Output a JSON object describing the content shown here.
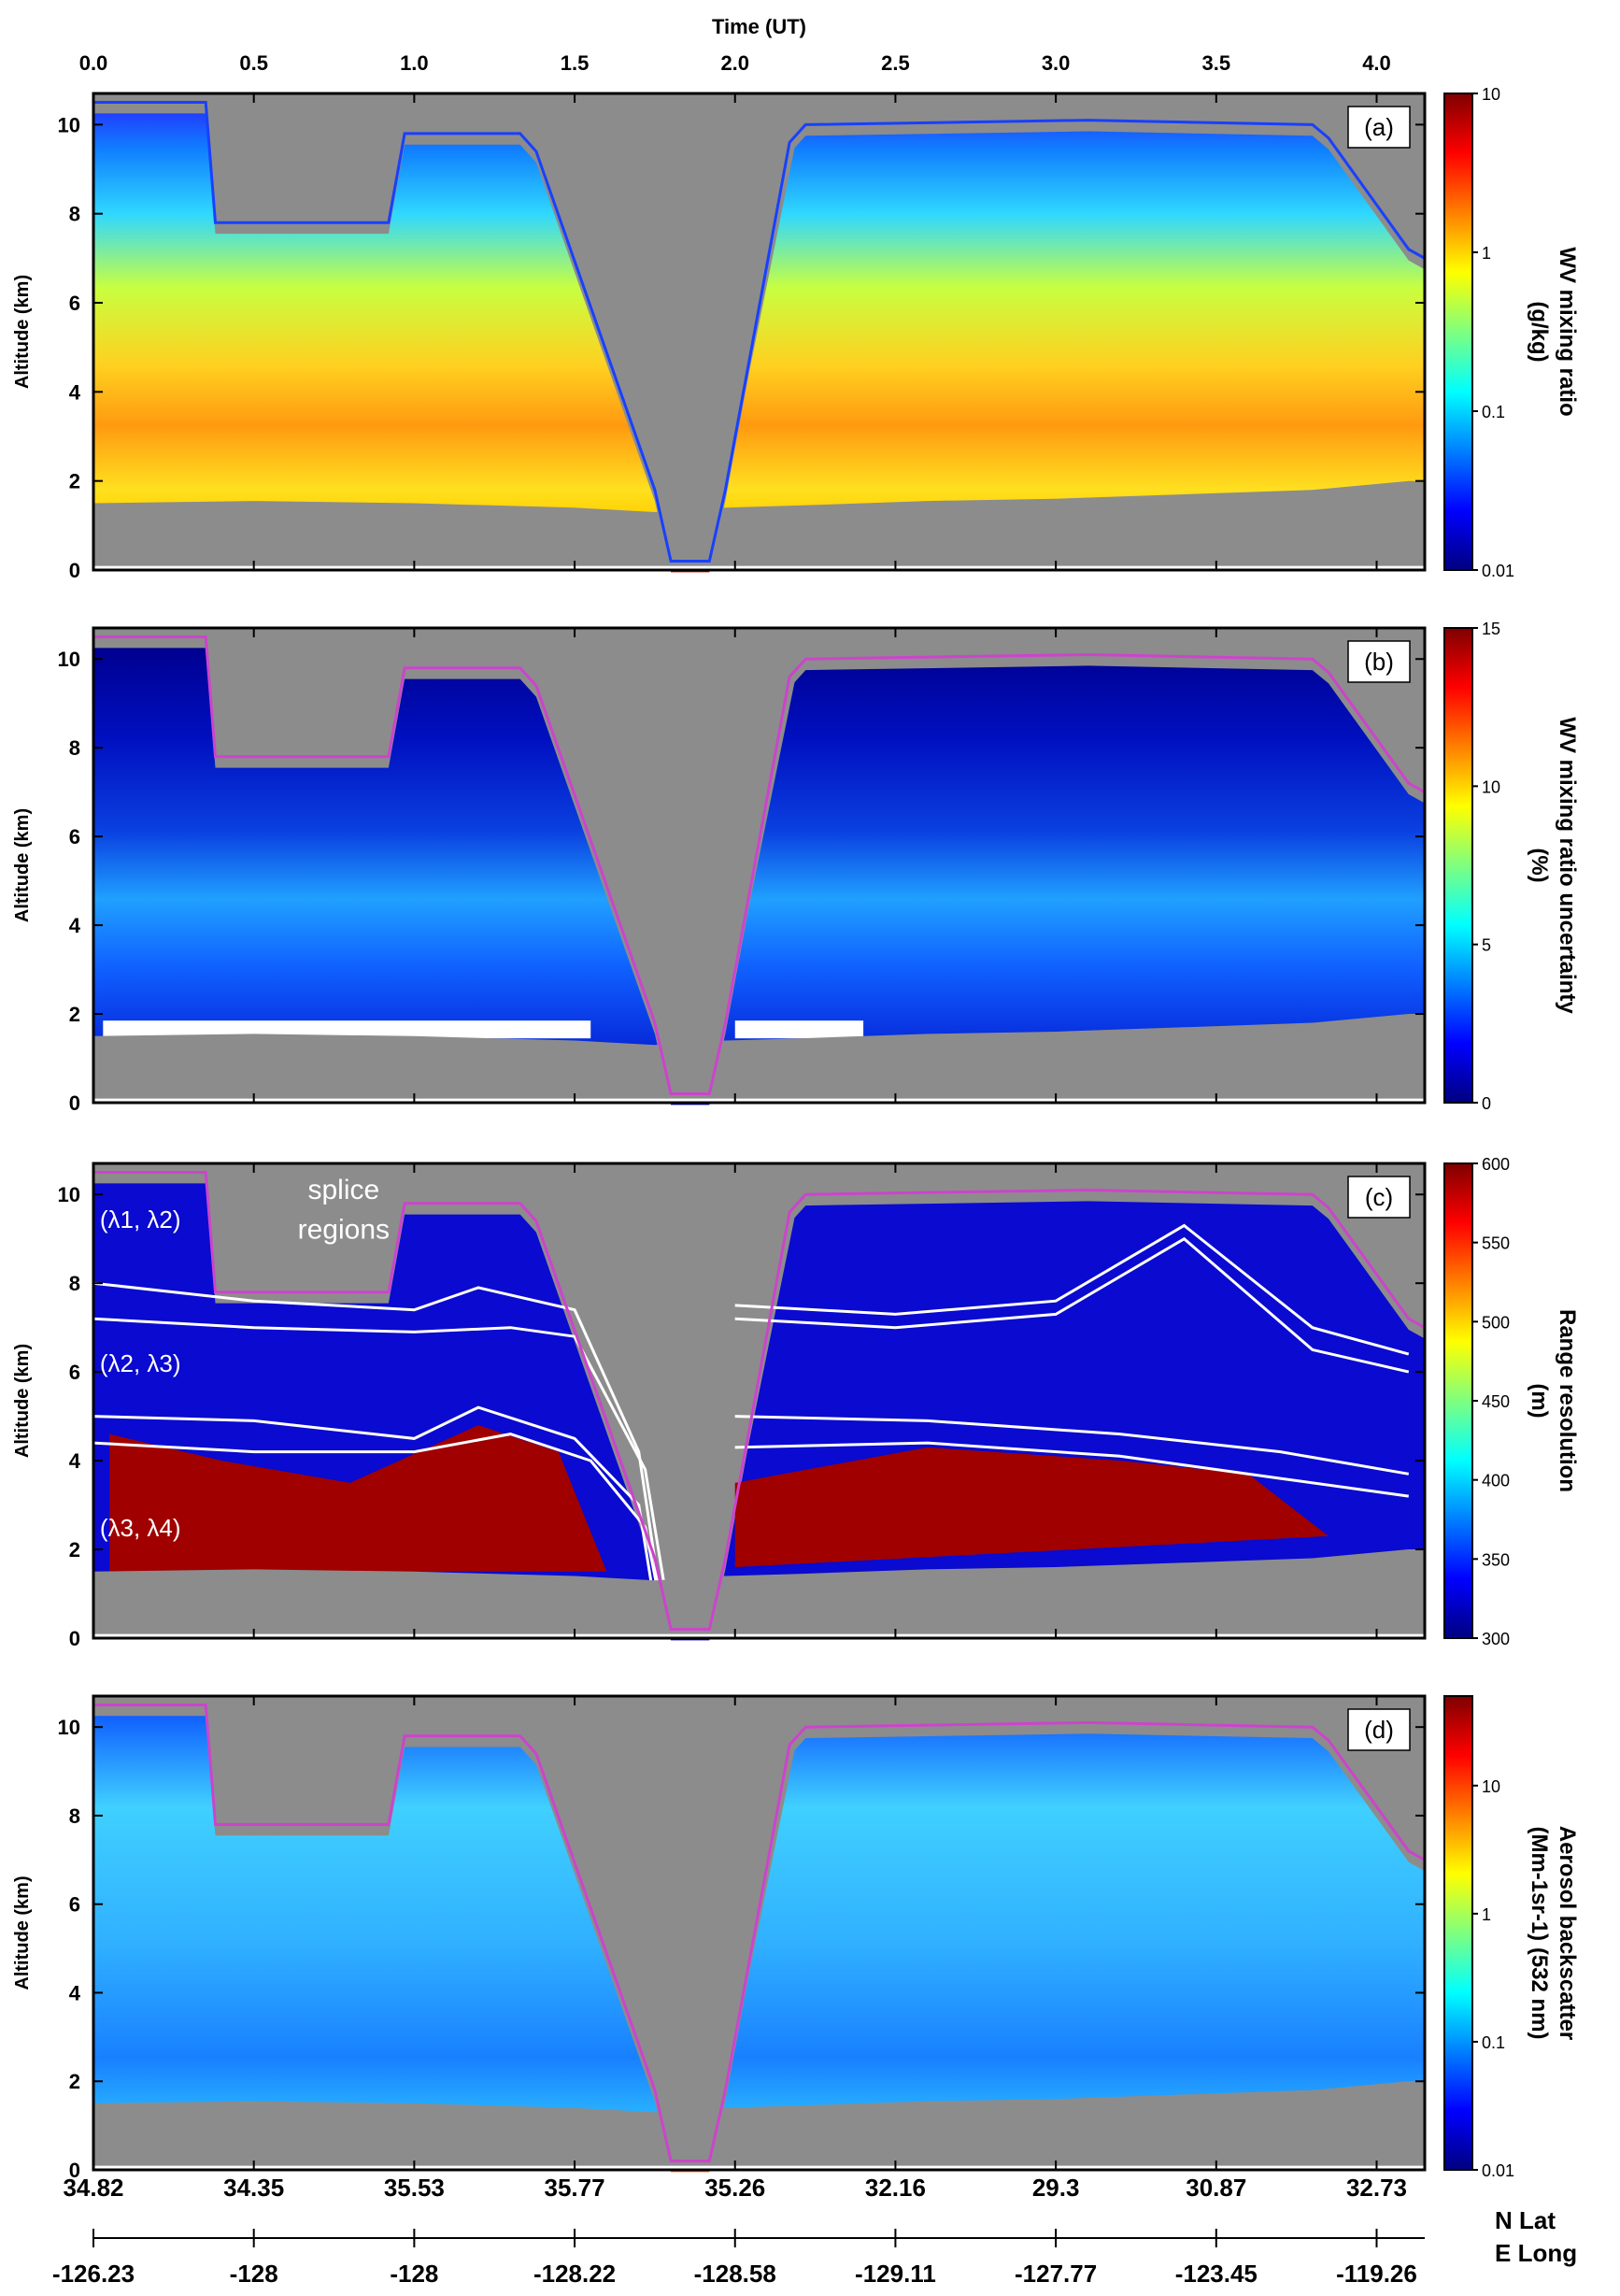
{
  "figure": {
    "top_axis_label": "Time (UT)",
    "top_ticks": [
      "0.0",
      "0.5",
      "1.0",
      "1.5",
      "2.0",
      "2.5",
      "3.0",
      "3.5",
      "4.0"
    ],
    "top_tick_values": [
      0.0,
      0.5,
      1.0,
      1.5,
      2.0,
      2.5,
      3.0,
      3.5,
      4.0
    ],
    "xlim": [
      0.0,
      4.15
    ],
    "lat_ticks": [
      "34.82",
      "34.35",
      "35.53",
      "35.77",
      "35.26",
      "32.16",
      "29.3",
      "30.87",
      "32.73"
    ],
    "lon_ticks": [
      "-126.23",
      "-128",
      "-128",
      "-128.22",
      "-128.58",
      "-129.11",
      "-127.77",
      "-123.45",
      "-119.26"
    ],
    "lat_label": "N Lat",
    "lon_label": "E Long"
  },
  "chart_data": [
    {
      "type": "heatmap",
      "panel_label": "(a)",
      "ylabel": "Altitude (km)",
      "yticks": [
        0,
        2,
        4,
        6,
        8,
        10
      ],
      "ylim": [
        0,
        10.7
      ],
      "colorbar": {
        "scale": "log",
        "range": [
          0.01,
          10
        ],
        "ticks": [
          "0.01",
          "0.1",
          "1",
          "10"
        ],
        "tick_values": [
          0.01,
          0.1,
          1,
          10
        ],
        "label_line1": "WV mixing ratio",
        "label_line2": "(g/kg)",
        "label_line3": ""
      },
      "colormap": [
        "#00007f",
        "#0000ff",
        "#007fff",
        "#00ffff",
        "#7fff7f",
        "#ffff00",
        "#ff7f00",
        "#ff0000",
        "#7f0000"
      ],
      "annotations": []
    },
    {
      "type": "heatmap",
      "panel_label": "(b)",
      "ylabel": "Altitude (km)",
      "yticks": [
        0,
        2,
        4,
        6,
        8,
        10
      ],
      "ylim": [
        0,
        10.7
      ],
      "colorbar": {
        "scale": "linear",
        "range": [
          0,
          15
        ],
        "ticks": [
          "0",
          "5",
          "10",
          "15"
        ],
        "tick_values": [
          0,
          5,
          10,
          15
        ],
        "label_line1": "WV mixing ratio uncertainty",
        "label_line2": "(%)",
        "label_line3": ""
      },
      "colormap": [
        "#00007f",
        "#0000ff",
        "#007fff",
        "#00ffff",
        "#7fff7f",
        "#ffff00",
        "#ff7f00",
        "#ff0000",
        "#7f0000"
      ],
      "annotations": []
    },
    {
      "type": "heatmap",
      "panel_label": "(c)",
      "ylabel": "Altitude (km)",
      "yticks": [
        0,
        2,
        4,
        6,
        8,
        10
      ],
      "ylim": [
        0,
        10.7
      ],
      "colorbar": {
        "scale": "linear",
        "range": [
          300,
          600
        ],
        "ticks": [
          "300",
          "350",
          "400",
          "450",
          "500",
          "550",
          "600"
        ],
        "tick_values": [
          300,
          350,
          400,
          450,
          500,
          550,
          600
        ],
        "label_line1": "Range resolution",
        "label_line2": "(m)",
        "label_line3": ""
      },
      "colormap": [
        "#00007f",
        "#0000ff",
        "#007fff",
        "#00ffff",
        "#7fff7f",
        "#ffff00",
        "#ff7f00",
        "#ff0000",
        "#7f0000"
      ],
      "annotations": [
        {
          "text": "(λ1, λ2)",
          "t": 0.02,
          "alt": 9.25
        },
        {
          "text": "(λ2, λ3)",
          "t": 0.02,
          "alt": 6.0
        },
        {
          "text": "(λ3, λ4)",
          "t": 0.02,
          "alt": 2.3
        },
        {
          "text": "splice",
          "t": 0.78,
          "alt": 9.9
        },
        {
          "text": "regions",
          "t": 0.78,
          "alt": 9.0
        }
      ]
    },
    {
      "type": "heatmap",
      "panel_label": "(d)",
      "ylabel": "Altitude (km)",
      "yticks": [
        0,
        2,
        4,
        6,
        8,
        10
      ],
      "ylim": [
        0,
        10.7
      ],
      "colorbar": {
        "scale": "log",
        "range": [
          0.01,
          50
        ],
        "ticks": [
          "0.01",
          "0.1",
          "1",
          "10"
        ],
        "tick_values": [
          0.01,
          0.1,
          1,
          10
        ],
        "label_line1": "Aerosol backscatter",
        "label_line2": "(Mm-1sr-1) (532 nm)",
        "label_line3": ""
      },
      "colormap": [
        "#00007f",
        "#0000ff",
        "#007fff",
        "#00ffff",
        "#7fff7f",
        "#ffff00",
        "#ff7f00",
        "#ff0000",
        "#7f0000"
      ],
      "annotations": []
    }
  ],
  "flight_altitude_profile": {
    "t": [
      0.0,
      0.35,
      0.38,
      0.92,
      0.97,
      1.33,
      1.38,
      1.75,
      1.8,
      1.92,
      1.97,
      2.17,
      2.22,
      3.1,
      3.8,
      3.85,
      4.1,
      4.15
    ],
    "alt": [
      10.5,
      10.5,
      7.8,
      7.8,
      9.8,
      9.8,
      9.4,
      1.8,
      0.2,
      0.2,
      1.8,
      9.6,
      10.0,
      10.1,
      10.0,
      9.7,
      7.2,
      7.0
    ]
  },
  "surface_profile": {
    "t": [
      0.0,
      0.5,
      1.0,
      1.5,
      1.75,
      1.97,
      2.2,
      2.6,
      3.0,
      3.4,
      3.8,
      4.1,
      4.15
    ],
    "alt": [
      1.5,
      1.55,
      1.5,
      1.4,
      1.3,
      1.4,
      1.45,
      1.55,
      1.6,
      1.7,
      1.8,
      2.0,
      2.0
    ]
  }
}
